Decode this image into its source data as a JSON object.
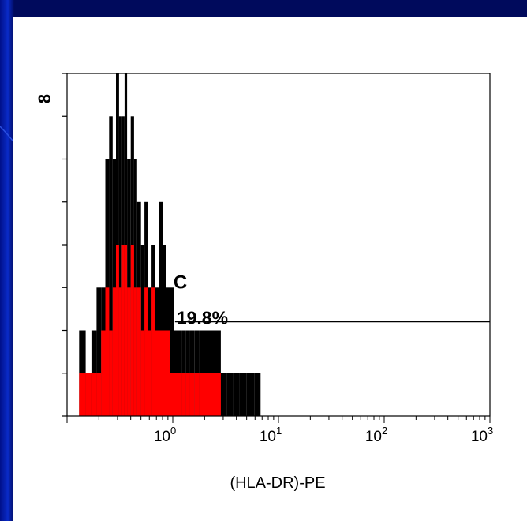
{
  "slide": {
    "background": "#ffffff",
    "frame_color": "#000a5c",
    "accent": "#2a4fe0"
  },
  "chart_data": {
    "type": "histogram",
    "xlabel": "(HLA-DR)-PE",
    "ylabel": "",
    "x_scale": "log",
    "xlim": [
      0.1,
      1000
    ],
    "x_ticks": [
      1,
      10,
      100,
      1000
    ],
    "x_tick_labels": [
      {
        "base": "10",
        "exp": "0"
      },
      {
        "base": "10",
        "exp": "1"
      },
      {
        "base": "10",
        "exp": "2"
      },
      {
        "base": "10",
        "exp": "3"
      }
    ],
    "ylim": [
      0,
      8
    ],
    "y_ticks": [
      0,
      1,
      2,
      3,
      4,
      5,
      6,
      7,
      8
    ],
    "y_top_label": "8",
    "grid": false,
    "gate": {
      "label": "C",
      "percent": "19.8%",
      "x_range": [
        1.05,
        1000
      ],
      "y_level": 2.2
    },
    "series": [
      {
        "color": "#000000",
        "x": [
          0.13,
          0.15,
          0.17,
          0.19,
          0.21,
          0.23,
          0.25,
          0.27,
          0.29,
          0.31,
          0.33,
          0.35,
          0.37,
          0.4,
          0.43,
          0.46,
          0.5,
          0.54,
          0.58,
          0.63,
          0.68,
          0.74,
          0.8,
          0.87,
          0.94,
          1.02,
          1.11,
          1.21,
          1.32,
          1.45,
          1.6,
          1.78,
          1.98,
          2.22,
          2.5,
          2.85,
          3.25,
          3.75,
          4.3,
          5.0,
          5.9
        ],
        "values": [
          2,
          1,
          2,
          3,
          3,
          6,
          7,
          6,
          8,
          7,
          7,
          8,
          6,
          7,
          6,
          5,
          4,
          5,
          3,
          4,
          3,
          5,
          4,
          3,
          3,
          2,
          2,
          2,
          2,
          2,
          2,
          2,
          2,
          2,
          2,
          1,
          1,
          1,
          1,
          1,
          1
        ]
      },
      {
        "color": "#ff0000",
        "x": [
          0.13,
          0.15,
          0.17,
          0.19,
          0.21,
          0.23,
          0.25,
          0.27,
          0.29,
          0.31,
          0.33,
          0.35,
          0.37,
          0.4,
          0.43,
          0.46,
          0.5,
          0.54,
          0.58,
          0.63,
          0.68,
          0.74,
          0.8,
          0.87,
          0.94,
          1.02,
          1.11,
          1.21,
          1.32,
          1.45,
          1.6,
          1.78,
          1.98,
          2.22,
          2.5,
          2.85,
          3.25,
          3.75,
          4.3
        ],
        "values": [
          1,
          1,
          1,
          1,
          2,
          3,
          2,
          3,
          4,
          3,
          4,
          4,
          3,
          4,
          3,
          3,
          2,
          3,
          2,
          3,
          2,
          2,
          2,
          2,
          1,
          1,
          1,
          1,
          1,
          1,
          1,
          1,
          1,
          1,
          1,
          0,
          0,
          0,
          0
        ]
      }
    ]
  }
}
